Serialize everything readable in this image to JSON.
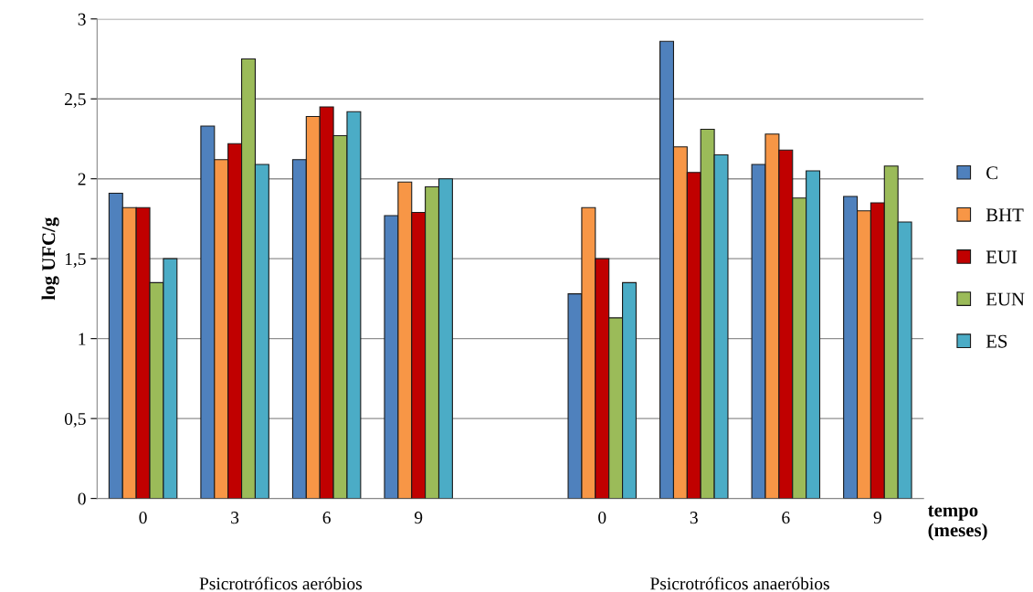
{
  "chart_data": {
    "type": "bar",
    "ylabel": "log UFC/g",
    "xlabel": "tempo\n(meses)",
    "categories": [
      "0",
      "3",
      "6",
      "9",
      null,
      "0",
      "3",
      "6",
      "9"
    ],
    "series": [
      {
        "name": "C",
        "color": "#4f81bd",
        "values": [
          1.91,
          2.33,
          2.12,
          1.77,
          null,
          1.28,
          2.86,
          2.09,
          1.89
        ]
      },
      {
        "name": "BHT",
        "color": "#f79646",
        "values": [
          1.82,
          2.12,
          2.39,
          1.98,
          null,
          1.82,
          2.2,
          2.28,
          1.8
        ]
      },
      {
        "name": "EUI",
        "color": "#c00000",
        "values": [
          1.82,
          2.22,
          2.45,
          1.79,
          null,
          1.5,
          2.04,
          2.18,
          1.85
        ]
      },
      {
        "name": "EUN",
        "color": "#9bbb59",
        "values": [
          1.35,
          2.75,
          2.27,
          1.95,
          null,
          1.13,
          2.31,
          1.88,
          2.08
        ]
      },
      {
        "name": "ES",
        "color": "#4bacc6",
        "values": [
          1.5,
          2.09,
          2.42,
          2.0,
          null,
          1.35,
          2.15,
          2.05,
          1.73
        ]
      }
    ],
    "ylim": [
      0,
      3
    ],
    "yticks": [
      0,
      {
        "value": 0.5,
        "label": "0,5"
      },
      1,
      {
        "value": 1.5,
        "label": "1,5"
      },
      2,
      {
        "value": 2.5,
        "label": "2,5"
      },
      3
    ],
    "annotations": [
      "Psicrotróficos aeróbios",
      "Psicrotróficos anaeróbios"
    ],
    "grid": "y",
    "legend": "right"
  }
}
